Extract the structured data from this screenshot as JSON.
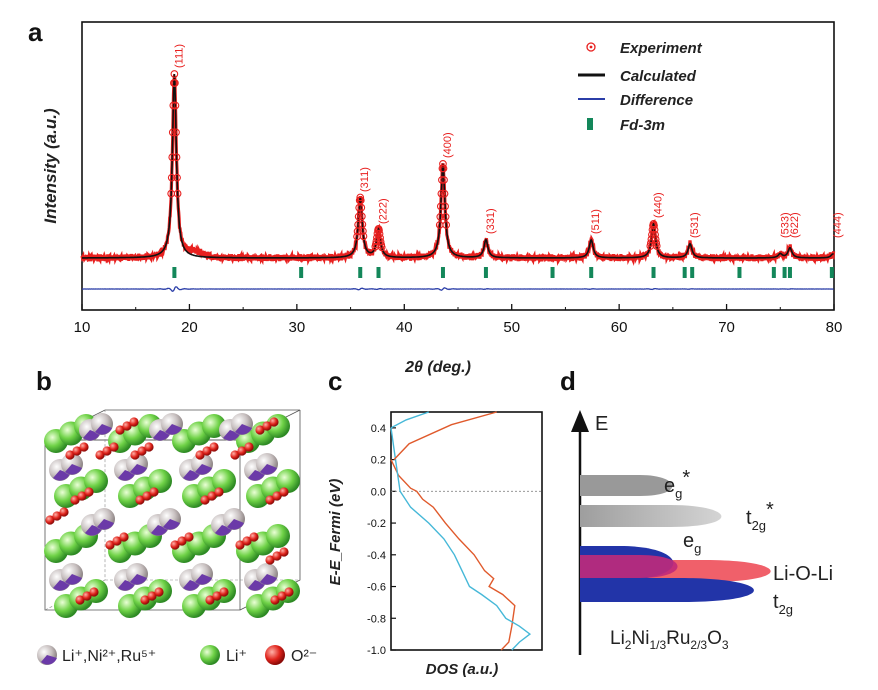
{
  "panels": {
    "a": "a",
    "b": "b",
    "c": "c",
    "d": "d"
  },
  "chart_data": [
    {
      "type": "line",
      "panel": "a",
      "title": "",
      "xlabel": "2θ (deg.)",
      "ylabel": "Intensity (a.u.)",
      "xlim": [
        10,
        80
      ],
      "xticks": [
        "10",
        "20",
        "30",
        "40",
        "50",
        "60",
        "70",
        "80"
      ],
      "legend": [
        {
          "name": "Experiment",
          "color": "#e8201f",
          "marker": "circle"
        },
        {
          "name": "Calculated",
          "color": "#111111",
          "marker": "line"
        },
        {
          "name": "Difference",
          "color": "#2b3ea8",
          "marker": "line"
        },
        {
          "name": "Fd-3m",
          "color": "#13875a",
          "marker": "bar"
        }
      ],
      "peaks": [
        {
          "label": "(111)",
          "x": 18.6,
          "h": 0.92
        },
        {
          "label": "(311)",
          "x": 35.9,
          "h": 0.3
        },
        {
          "label": "(222)",
          "x": 37.6,
          "h": 0.14
        },
        {
          "label": "(400)",
          "x": 43.6,
          "h": 0.47
        },
        {
          "label": "(331)",
          "x": 47.6,
          "h": 0.09
        },
        {
          "label": "(511)",
          "x": 57.4,
          "h": 0.09
        },
        {
          "label": "(440)",
          "x": 63.2,
          "h": 0.17
        },
        {
          "label": "(531)",
          "x": 66.6,
          "h": 0.07
        },
        {
          "label": "(533)",
          "x": 75.0,
          "h": 0.02
        },
        {
          "label": "(622)",
          "x": 75.9,
          "h": 0.05
        },
        {
          "label": "(444)",
          "x": 79.9,
          "h": 0.02
        }
      ],
      "bragg_positions": [
        18.6,
        30.4,
        35.9,
        37.6,
        43.6,
        47.6,
        53.8,
        57.4,
        63.2,
        66.1,
        66.8,
        71.2,
        74.4,
        75.4,
        75.9,
        79.8
      ]
    },
    {
      "type": "line",
      "panel": "c",
      "xlabel": "DOS (a.u.)",
      "ylabel": "E-E_Fermi (eV)",
      "ylim": [
        -1.0,
        0.5
      ],
      "yticks": [
        "0.4",
        "0.2",
        "0.0",
        "-0.2",
        "-0.4",
        "-0.6",
        "-0.8",
        "-1.0"
      ],
      "series": [
        {
          "name": "orange",
          "color": "#e05a2c",
          "points": [
            [
              0.0,
              0.2
            ],
            [
              0.05,
              0.1
            ],
            [
              0.13,
              0.02
            ],
            [
              0.17,
              0.0
            ],
            [
              0.21,
              -0.05
            ],
            [
              0.28,
              -0.1
            ],
            [
              0.36,
              -0.2
            ],
            [
              0.45,
              -0.3
            ],
            [
              0.55,
              -0.4
            ],
            [
              0.62,
              -0.5
            ],
            [
              0.68,
              -0.55
            ],
            [
              0.65,
              -0.6
            ],
            [
              0.74,
              -0.65
            ],
            [
              0.82,
              -0.72
            ],
            [
              0.8,
              -0.85
            ],
            [
              0.78,
              -0.95
            ],
            [
              0.73,
              -1.0
            ]
          ]
        },
        {
          "name": "cyan",
          "color": "#46b8d8",
          "points": [
            [
              0.0,
              0.4
            ],
            [
              0.03,
              0.2
            ],
            [
              0.06,
              0.0
            ],
            [
              0.13,
              -0.1
            ],
            [
              0.25,
              -0.2
            ],
            [
              0.35,
              -0.3
            ],
            [
              0.42,
              -0.4
            ],
            [
              0.47,
              -0.5
            ],
            [
              0.52,
              -0.6
            ],
            [
              0.6,
              -0.65
            ],
            [
              0.7,
              -0.72
            ],
            [
              0.76,
              -0.8
            ],
            [
              0.85,
              -0.85
            ],
            [
              0.92,
              -0.9
            ],
            [
              0.85,
              -0.95
            ],
            [
              0.8,
              -1.0
            ]
          ]
        }
      ]
    }
  ],
  "structure": {
    "legend": [
      "Li⁺,Ni²⁺,Ru⁵⁺",
      "Li⁺",
      "O²⁻"
    ]
  },
  "band_diagram": {
    "axis_label": "E",
    "bands": [
      "e_g*",
      "t_2g*",
      "e_g",
      "Li-O-Li",
      "t_2g"
    ],
    "compound": "Li2Ni1/3Ru2/3O3"
  }
}
